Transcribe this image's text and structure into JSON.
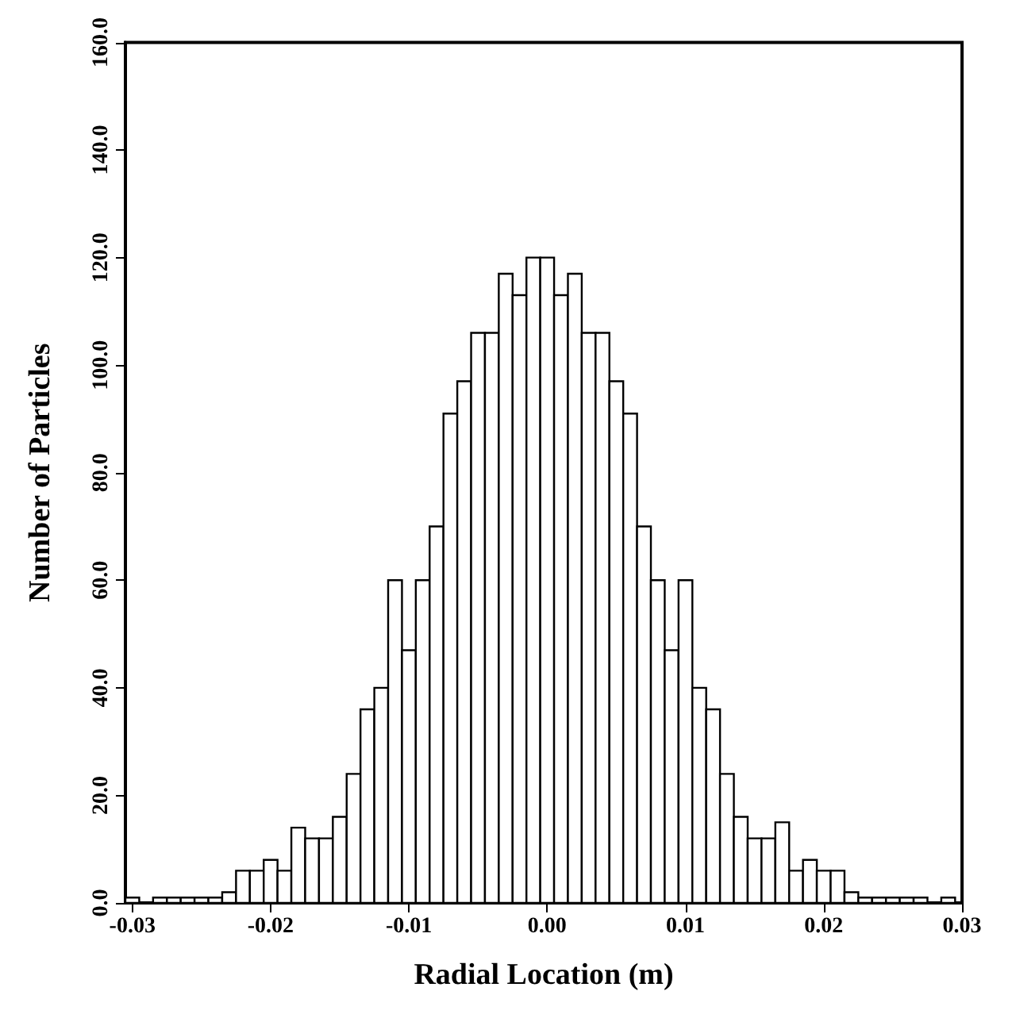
{
  "chart_data": {
    "type": "histogram",
    "xlabel": "Radial Location (m)",
    "ylabel": "Number of Particles",
    "bins": [
      -0.0305,
      -0.0295,
      -0.0285,
      -0.0275,
      -0.0265,
      -0.0255,
      -0.0245,
      -0.0235,
      -0.0225,
      -0.0215,
      -0.0205,
      -0.0195,
      -0.0185,
      -0.0175,
      -0.0165,
      -0.0155,
      -0.0145,
      -0.0135,
      -0.0125,
      -0.0115,
      -0.0105,
      -0.0095,
      -0.0085,
      -0.0075,
      -0.0065,
      -0.0055,
      -0.0045,
      -0.0035,
      -0.0025,
      -0.0015,
      -0.0005,
      0.0005,
      0.0015,
      0.0025,
      0.0035,
      0.0045,
      0.0055,
      0.0065,
      0.0075,
      0.0085,
      0.0095,
      0.0105,
      0.0115,
      0.0125,
      0.0135,
      0.0145,
      0.0155,
      0.0165,
      0.0175,
      0.0185,
      0.0195,
      0.0205,
      0.0215,
      0.0225,
      0.0235,
      0.0245,
      0.0255,
      0.0265,
      0.0275,
      0.0285,
      0.0295
    ],
    "values": [
      1,
      0,
      1,
      1,
      1,
      1,
      1,
      2,
      6,
      6,
      8,
      6,
      14,
      12,
      12,
      16,
      24,
      36,
      40,
      60,
      47,
      60,
      70,
      91,
      97,
      106,
      106,
      117,
      113,
      120,
      120,
      113,
      117,
      106,
      106,
      97,
      91,
      70,
      60,
      47,
      60,
      40,
      36,
      24,
      16,
      12,
      12,
      15,
      6,
      8,
      6,
      6,
      2,
      1,
      1,
      1,
      1,
      1,
      0,
      1
    ],
    "color": "#ffffff",
    "xlim": [
      -0.0305,
      0.03
    ],
    "xticks": [
      -0.03,
      -0.02,
      -0.01,
      {
        "value": 0,
        "label": "0.00"
      },
      0.01,
      0.02,
      0.03
    ],
    "ylim": [
      0,
      160
    ],
    "yticks": [
      {
        "value": 0,
        "label": "0.0"
      },
      {
        "value": 20,
        "label": "20.0"
      },
      {
        "value": 40,
        "label": "40.0"
      },
      {
        "value": 60,
        "label": "60.0"
      },
      {
        "value": 80,
        "label": "80.0"
      },
      {
        "value": 100,
        "label": "100.0"
      },
      {
        "value": 120,
        "label": "120.0"
      },
      {
        "value": 140,
        "label": "140.0"
      },
      {
        "value": 160,
        "label": "160.0"
      }
    ],
    "grid": false
  }
}
